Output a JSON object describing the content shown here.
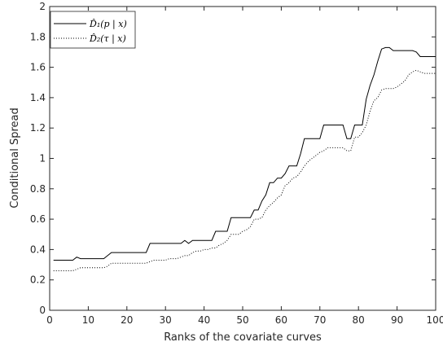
{
  "chart_data": {
    "type": "line",
    "title": "",
    "xlabel": "Ranks of the covariate curves",
    "ylabel": "Conditional Spread",
    "xlim": [
      0,
      100
    ],
    "ylim": [
      0,
      2
    ],
    "x_ticks": [
      "0",
      "10",
      "20",
      "30",
      "40",
      "50",
      "60",
      "70",
      "80",
      "90",
      "100"
    ],
    "y_ticks": [
      "0",
      "0.2",
      "0.4",
      "0.6",
      "0.8",
      "1",
      "1.2",
      "1.4",
      "1.6",
      "1.8",
      "2"
    ],
    "grid": false,
    "legend_position": "top-left",
    "series": [
      {
        "name": "D̂₁(p | x)",
        "style": "solid",
        "color": "#000000",
        "x": [
          1,
          2,
          3,
          4,
          5,
          6,
          7,
          8,
          9,
          10,
          11,
          12,
          13,
          14,
          15,
          16,
          17,
          18,
          19,
          20,
          21,
          22,
          23,
          24,
          25,
          26,
          27,
          28,
          29,
          30,
          31,
          32,
          33,
          34,
          35,
          36,
          37,
          38,
          39,
          40,
          41,
          42,
          43,
          44,
          45,
          46,
          47,
          48,
          49,
          50,
          51,
          52,
          53,
          54,
          55,
          56,
          57,
          58,
          59,
          60,
          61,
          62,
          63,
          64,
          65,
          66,
          67,
          68,
          69,
          70,
          71,
          72,
          73,
          74,
          75,
          76,
          77,
          78,
          79,
          80,
          81,
          82,
          83,
          84,
          85,
          86,
          87,
          88,
          89,
          90,
          91,
          92,
          93,
          94,
          95,
          96,
          97,
          98,
          99,
          100
        ],
        "y": [
          0.33,
          0.33,
          0.33,
          0.33,
          0.33,
          0.33,
          0.35,
          0.34,
          0.34,
          0.34,
          0.34,
          0.34,
          0.34,
          0.34,
          0.36,
          0.38,
          0.38,
          0.38,
          0.38,
          0.38,
          0.38,
          0.38,
          0.38,
          0.38,
          0.38,
          0.44,
          0.44,
          0.44,
          0.44,
          0.44,
          0.44,
          0.44,
          0.44,
          0.44,
          0.46,
          0.44,
          0.46,
          0.46,
          0.46,
          0.46,
          0.46,
          0.46,
          0.52,
          0.52,
          0.52,
          0.52,
          0.61,
          0.61,
          0.61,
          0.61,
          0.61,
          0.61,
          0.66,
          0.66,
          0.72,
          0.76,
          0.84,
          0.84,
          0.87,
          0.87,
          0.9,
          0.95,
          0.95,
          0.95,
          1.03,
          1.13,
          1.13,
          1.13,
          1.13,
          1.13,
          1.22,
          1.22,
          1.22,
          1.22,
          1.22,
          1.22,
          1.13,
          1.13,
          1.22,
          1.22,
          1.22,
          1.39,
          1.48,
          1.55,
          1.64,
          1.72,
          1.73,
          1.73,
          1.71,
          1.71,
          1.71,
          1.71,
          1.71,
          1.71,
          1.7,
          1.67,
          1.67,
          1.67,
          1.67,
          1.67
        ]
      },
      {
        "name": "D̂₂(τ | x)",
        "style": "dotted",
        "color": "#000000",
        "x": [
          1,
          2,
          3,
          4,
          5,
          6,
          7,
          8,
          9,
          10,
          11,
          12,
          13,
          14,
          15,
          16,
          17,
          18,
          19,
          20,
          21,
          22,
          23,
          24,
          25,
          26,
          27,
          28,
          29,
          30,
          31,
          32,
          33,
          34,
          35,
          36,
          37,
          38,
          39,
          40,
          41,
          42,
          43,
          44,
          45,
          46,
          47,
          48,
          49,
          50,
          51,
          52,
          53,
          54,
          55,
          56,
          57,
          58,
          59,
          60,
          61,
          62,
          63,
          64,
          65,
          66,
          67,
          68,
          69,
          70,
          71,
          72,
          73,
          74,
          75,
          76,
          77,
          78,
          79,
          80,
          81,
          82,
          83,
          84,
          85,
          86,
          87,
          88,
          89,
          90,
          91,
          92,
          93,
          94,
          95,
          96,
          97,
          98,
          99,
          100
        ],
        "y": [
          0.26,
          0.26,
          0.26,
          0.26,
          0.26,
          0.26,
          0.27,
          0.28,
          0.28,
          0.28,
          0.28,
          0.28,
          0.28,
          0.28,
          0.29,
          0.31,
          0.31,
          0.31,
          0.31,
          0.31,
          0.31,
          0.31,
          0.31,
          0.31,
          0.31,
          0.32,
          0.33,
          0.33,
          0.33,
          0.33,
          0.34,
          0.34,
          0.34,
          0.35,
          0.36,
          0.36,
          0.38,
          0.39,
          0.39,
          0.4,
          0.4,
          0.41,
          0.41,
          0.43,
          0.44,
          0.46,
          0.5,
          0.5,
          0.5,
          0.52,
          0.53,
          0.55,
          0.6,
          0.6,
          0.61,
          0.66,
          0.69,
          0.71,
          0.74,
          0.76,
          0.82,
          0.84,
          0.87,
          0.88,
          0.91,
          0.95,
          0.98,
          1.0,
          1.02,
          1.04,
          1.05,
          1.07,
          1.07,
          1.07,
          1.07,
          1.07,
          1.05,
          1.05,
          1.14,
          1.14,
          1.17,
          1.22,
          1.31,
          1.38,
          1.4,
          1.45,
          1.46,
          1.46,
          1.46,
          1.47,
          1.49,
          1.51,
          1.55,
          1.57,
          1.58,
          1.57,
          1.56,
          1.56,
          1.56,
          1.56
        ]
      }
    ]
  }
}
